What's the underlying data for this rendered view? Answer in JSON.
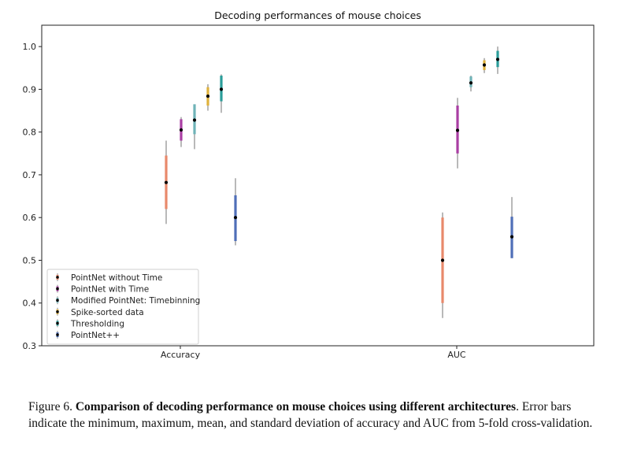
{
  "chart_data": {
    "type": "errorbar",
    "title": "Decoding performances of mouse choices",
    "categories": [
      "Accuracy",
      "AUC"
    ],
    "ylim": [
      0.3,
      1.05
    ],
    "yticks": [
      0.3,
      0.4,
      0.5,
      0.6,
      0.7,
      0.8,
      0.9,
      1.0
    ],
    "ytick_labels": [
      "0.3",
      "0.4",
      "0.5",
      "0.6",
      "0.7",
      "0.8",
      "0.9",
      "1.0"
    ],
    "legend_position": "lower-left",
    "series": [
      {
        "name": "PointNet without Time",
        "color": "#e8896b",
        "accuracy": {
          "min": 0.585,
          "max": 0.78,
          "mean": 0.682,
          "std_low": 0.62,
          "std_high": 0.745
        },
        "auc": {
          "min": 0.365,
          "max": 0.612,
          "mean": 0.5,
          "std_low": 0.4,
          "std_high": 0.6
        }
      },
      {
        "name": "PointNet with Time",
        "color": "#a93ea3",
        "accuracy": {
          "min": 0.765,
          "max": 0.835,
          "mean": 0.805,
          "std_low": 0.78,
          "std_high": 0.83
        },
        "auc": {
          "min": 0.715,
          "max": 0.88,
          "mean": 0.804,
          "std_low": 0.75,
          "std_high": 0.862
        }
      },
      {
        "name": "Modified PointNet: Timebinning",
        "color": "#6fb3b8",
        "accuracy": {
          "min": 0.76,
          "max": 0.865,
          "mean": 0.828,
          "std_low": 0.795,
          "std_high": 0.865
        },
        "auc": {
          "min": 0.895,
          "max": 0.932,
          "mean": 0.915,
          "std_low": 0.905,
          "std_high": 0.93
        }
      },
      {
        "name": "Spike-sorted data",
        "color": "#e0b23c",
        "accuracy": {
          "min": 0.85,
          "max": 0.912,
          "mean": 0.884,
          "std_low": 0.862,
          "std_high": 0.905
        },
        "auc": {
          "min": 0.938,
          "max": 0.973,
          "mean": 0.957,
          "std_low": 0.945,
          "std_high": 0.968
        }
      },
      {
        "name": "Thresholding",
        "color": "#2a9d9a",
        "accuracy": {
          "min": 0.845,
          "max": 0.935,
          "mean": 0.9,
          "std_low": 0.872,
          "std_high": 0.932
        },
        "auc": {
          "min": 0.936,
          "max": 1.0,
          "mean": 0.97,
          "std_low": 0.952,
          "std_high": 0.99
        }
      },
      {
        "name": "PointNet++",
        "color": "#4f6fb8",
        "accuracy": {
          "min": 0.535,
          "max": 0.692,
          "mean": 0.6,
          "std_low": 0.545,
          "std_high": 0.652
        },
        "auc": {
          "min": 0.505,
          "max": 0.648,
          "mean": 0.555,
          "std_low": 0.505,
          "std_high": 0.602
        }
      }
    ]
  },
  "caption": {
    "prefix": "Figure 6. ",
    "bold": "Comparison of decoding performance on mouse choices using different architectures",
    "rest": ". Error bars indicate the minimum, maximum, mean, and standard deviation of accuracy and AUC from 5-fold cross-validation."
  }
}
